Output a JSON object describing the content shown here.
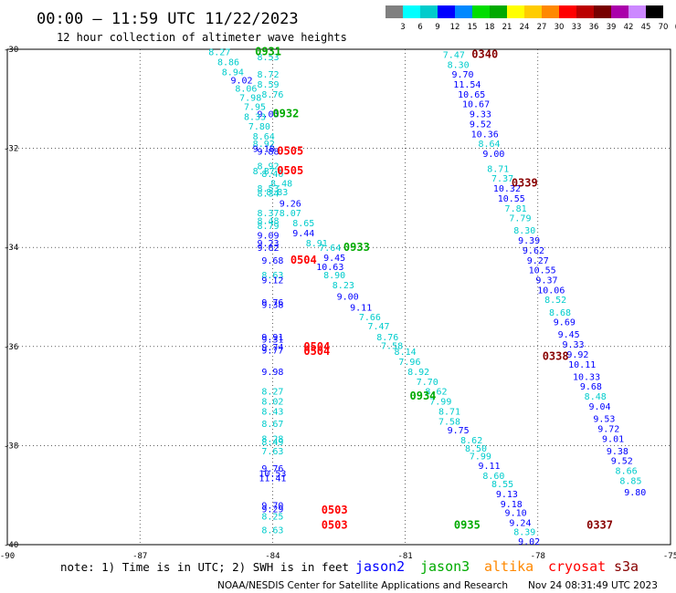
{
  "header": {
    "title": "00:00 – 11:59 UTC 11/22/2023",
    "subtitle": "12 hour collection of altimeter wave heights"
  },
  "colorbar": {
    "labels": [
      "3",
      "6",
      "9",
      "12",
      "15",
      "18",
      "21",
      "24",
      "27",
      "30",
      "33",
      "36",
      "39",
      "42",
      "45",
      "70",
      "(ft)"
    ],
    "colors": [
      "#808080",
      "#00ffff",
      "#00cccc",
      "#0000ff",
      "#0088ff",
      "#00dd00",
      "#00aa00",
      "#ffff00",
      "#ffcc00",
      "#ff8800",
      "#ff0000",
      "#bb0000",
      "#770000",
      "#aa00aa",
      "#cc88ff",
      "#000000"
    ]
  },
  "footer": {
    "note": "note: 1) Time is in UTC; 2) SWH is in feet",
    "legend": [
      {
        "name": "jason2",
        "color": "#0000ff"
      },
      {
        "name": "jason3",
        "color": "#00aa00"
      },
      {
        "name": "altika",
        "color": "#ff8800"
      },
      {
        "name": "cryosat",
        "color": "#ff0000"
      },
      {
        "name": "s3a",
        "color": "#880000"
      }
    ],
    "credit": "NOAA/NESDIS Center for Satellite Applications and Research",
    "timestamp": "Nov 24 08:31:49 UTC 2023"
  },
  "chart_data": {
    "type": "scatter",
    "title": "00:00 – 11:59 UTC 11/22/2023",
    "subtitle": "12 hour collection of altimeter wave heights",
    "xlim": [
      -90,
      -75
    ],
    "ylim": [
      -40,
      -30
    ],
    "x_ticks": [
      "-90",
      "-87",
      "-84",
      "-81",
      "-78",
      "-75"
    ],
    "y_ticks": [
      "-30",
      "-32",
      "-34",
      "-36",
      "-38",
      "-40"
    ],
    "grid": "dotted",
    "color_scale": {
      "3-9": "#00cccc",
      "9-12": "#0000ff"
    },
    "pass_labels": [
      {
        "label": "0931",
        "x": -84.1,
        "y": -30.05,
        "color": "#00aa00"
      },
      {
        "label": "0932",
        "x": -83.7,
        "y": -31.3,
        "color": "#00aa00"
      },
      {
        "label": "0505",
        "x": -83.6,
        "y": -32.05,
        "color": "#ff0000"
      },
      {
        "label": "0505",
        "x": -83.6,
        "y": -32.45,
        "color": "#ff0000"
      },
      {
        "label": "0933",
        "x": -82.1,
        "y": -34.0,
        "color": "#00aa00"
      },
      {
        "label": "0504",
        "x": -83.3,
        "y": -34.25,
        "color": "#ff0000"
      },
      {
        "label": "0504",
        "x": -83.0,
        "y": -36.0,
        "color": "#ff0000"
      },
      {
        "label": "0504",
        "x": -83.0,
        "y": -36.1,
        "color": "#ff0000"
      },
      {
        "label": "0934",
        "x": -80.6,
        "y": -37.0,
        "color": "#00aa00"
      },
      {
        "label": "0503",
        "x": -82.6,
        "y": -39.3,
        "color": "#ff0000"
      },
      {
        "label": "0503",
        "x": -82.6,
        "y": -39.6,
        "color": "#ff0000"
      },
      {
        "label": "0935",
        "x": -79.6,
        "y": -39.6,
        "color": "#00aa00"
      },
      {
        "label": "0340",
        "x": -79.2,
        "y": -30.1,
        "color": "#880000"
      },
      {
        "label": "0339",
        "x": -78.3,
        "y": -32.7,
        "color": "#880000"
      },
      {
        "label": "0338",
        "x": -77.6,
        "y": -36.2,
        "color": "#880000"
      },
      {
        "label": "0337",
        "x": -76.6,
        "y": -39.6,
        "color": "#880000"
      }
    ],
    "points": [
      {
        "x": -85.2,
        "y": -30.05,
        "v": "8.27"
      },
      {
        "x": -84.1,
        "y": -30.15,
        "v": "8.53"
      },
      {
        "x": -85.0,
        "y": -30.25,
        "v": "8.86"
      },
      {
        "x": -84.9,
        "y": -30.45,
        "v": "8.94"
      },
      {
        "x": -84.1,
        "y": -30.5,
        "v": "8.72"
      },
      {
        "x": -84.7,
        "y": -30.62,
        "v": "9.02"
      },
      {
        "x": -84.1,
        "y": -30.7,
        "v": "8.59"
      },
      {
        "x": -84.6,
        "y": -30.78,
        "v": "8.06"
      },
      {
        "x": -84.0,
        "y": -30.9,
        "v": "8.76"
      },
      {
        "x": -84.5,
        "y": -30.97,
        "v": "7.98"
      },
      {
        "x": -84.4,
        "y": -31.15,
        "v": "7.95"
      },
      {
        "x": -84.1,
        "y": -31.3,
        "v": "9.03"
      },
      {
        "x": -84.4,
        "y": -31.35,
        "v": "8.33"
      },
      {
        "x": -84.3,
        "y": -31.55,
        "v": "7.80"
      },
      {
        "x": -84.2,
        "y": -31.75,
        "v": "8.64"
      },
      {
        "x": -84.2,
        "y": -31.9,
        "v": "8.92"
      },
      {
        "x": -84.2,
        "y": -32.0,
        "v": "9.18"
      },
      {
        "x": -84.1,
        "y": -32.05,
        "v": "9.88"
      },
      {
        "x": -84.1,
        "y": -32.35,
        "v": "8.92"
      },
      {
        "x": -84.2,
        "y": -32.45,
        "v": "8.87"
      },
      {
        "x": -84.0,
        "y": -32.5,
        "v": "8.40"
      },
      {
        "x": -83.8,
        "y": -32.7,
        "v": "8.48"
      },
      {
        "x": -84.1,
        "y": -32.8,
        "v": "8.53"
      },
      {
        "x": -83.9,
        "y": -32.87,
        "v": "8.83"
      },
      {
        "x": -84.1,
        "y": -32.9,
        "v": "8.34"
      },
      {
        "x": -83.6,
        "y": -33.1,
        "v": "9.26"
      },
      {
        "x": -84.1,
        "y": -33.3,
        "v": "8.37"
      },
      {
        "x": -83.6,
        "y": -33.3,
        "v": "8.07"
      },
      {
        "x": -84.1,
        "y": -33.45,
        "v": "8.48"
      },
      {
        "x": -83.3,
        "y": -33.5,
        "v": "8.65"
      },
      {
        "x": -84.1,
        "y": -33.55,
        "v": "8.79"
      },
      {
        "x": -84.1,
        "y": -33.75,
        "v": "9.09"
      },
      {
        "x": -83.3,
        "y": -33.7,
        "v": "9.44"
      },
      {
        "x": -84.1,
        "y": -33.9,
        "v": "9.23"
      },
      {
        "x": -83.0,
        "y": -33.9,
        "v": "8.91"
      },
      {
        "x": -84.1,
        "y": -34.0,
        "v": "9.62"
      },
      {
        "x": -82.7,
        "y": -34.0,
        "v": "7.64"
      },
      {
        "x": -82.6,
        "y": -34.2,
        "v": "9.45"
      },
      {
        "x": -84.0,
        "y": -34.25,
        "v": "9.68"
      },
      {
        "x": -82.7,
        "y": -34.38,
        "v": "10.63"
      },
      {
        "x": -84.0,
        "y": -34.55,
        "v": "8.63"
      },
      {
        "x": -84.0,
        "y": -34.65,
        "v": "9.12"
      },
      {
        "x": -82.6,
        "y": -34.55,
        "v": "8.90"
      },
      {
        "x": -82.4,
        "y": -34.75,
        "v": "8.23"
      },
      {
        "x": -82.3,
        "y": -34.98,
        "v": "9.00"
      },
      {
        "x": -84.0,
        "y": -35.1,
        "v": "9.76"
      },
      {
        "x": -84.0,
        "y": -35.15,
        "v": "9.38"
      },
      {
        "x": -82.0,
        "y": -35.2,
        "v": "9.11"
      },
      {
        "x": -81.8,
        "y": -35.4,
        "v": "7.66"
      },
      {
        "x": -81.6,
        "y": -35.58,
        "v": "7.47"
      },
      {
        "x": -81.4,
        "y": -35.8,
        "v": "8.76"
      },
      {
        "x": -84.0,
        "y": -35.8,
        "v": "9.91"
      },
      {
        "x": -84.0,
        "y": -35.85,
        "v": "9.31"
      },
      {
        "x": -81.3,
        "y": -35.98,
        "v": "7.58"
      },
      {
        "x": -84.0,
        "y": -36.0,
        "v": "9.74"
      },
      {
        "x": -84.0,
        "y": -36.07,
        "v": "9.77"
      },
      {
        "x": -81.0,
        "y": -36.1,
        "v": "8.14"
      },
      {
        "x": -80.9,
        "y": -36.3,
        "v": "7.96"
      },
      {
        "x": -80.7,
        "y": -36.5,
        "v": "8.92"
      },
      {
        "x": -84.0,
        "y": -36.5,
        "v": "9.98"
      },
      {
        "x": -80.5,
        "y": -36.7,
        "v": "7.70"
      },
      {
        "x": -84.0,
        "y": -36.9,
        "v": "8.27"
      },
      {
        "x": -80.3,
        "y": -36.9,
        "v": "8.62"
      },
      {
        "x": -84.0,
        "y": -37.1,
        "v": "8.02"
      },
      {
        "x": -80.2,
        "y": -37.1,
        "v": "7.99"
      },
      {
        "x": -84.0,
        "y": -37.3,
        "v": "8.43"
      },
      {
        "x": -80.0,
        "y": -37.3,
        "v": "8.71"
      },
      {
        "x": -80.0,
        "y": -37.5,
        "v": "7.58"
      },
      {
        "x": -84.0,
        "y": -37.55,
        "v": "8.67"
      },
      {
        "x": -79.8,
        "y": -37.68,
        "v": "9.75"
      },
      {
        "x": -84.0,
        "y": -37.85,
        "v": "8.28"
      },
      {
        "x": -84.0,
        "y": -37.92,
        "v": "8.49"
      },
      {
        "x": -79.5,
        "y": -37.88,
        "v": "8.62"
      },
      {
        "x": -79.4,
        "y": -38.05,
        "v": "8.50"
      },
      {
        "x": -84.0,
        "y": -38.1,
        "v": "7.63"
      },
      {
        "x": -79.3,
        "y": -38.2,
        "v": "7.99"
      },
      {
        "x": -79.1,
        "y": -38.4,
        "v": "9.11"
      },
      {
        "x": -84.0,
        "y": -38.45,
        "v": "9.76"
      },
      {
        "x": -84.0,
        "y": -38.55,
        "v": "10.53"
      },
      {
        "x": -84.0,
        "y": -38.65,
        "v": "11.41"
      },
      {
        "x": -79.0,
        "y": -38.6,
        "v": "8.60"
      },
      {
        "x": -78.8,
        "y": -38.77,
        "v": "8.55"
      },
      {
        "x": -78.7,
        "y": -38.97,
        "v": "9.13"
      },
      {
        "x": -78.6,
        "y": -39.17,
        "v": "9.18"
      },
      {
        "x": -84.0,
        "y": -39.2,
        "v": "9.70"
      },
      {
        "x": -84.0,
        "y": -39.27,
        "v": "9.29"
      },
      {
        "x": -78.5,
        "y": -39.35,
        "v": "9.10"
      },
      {
        "x": -84.0,
        "y": -39.42,
        "v": "8.25"
      },
      {
        "x": -78.4,
        "y": -39.55,
        "v": "9.24"
      },
      {
        "x": -84.0,
        "y": -39.7,
        "v": "8.63"
      },
      {
        "x": -78.3,
        "y": -39.73,
        "v": "8.39"
      },
      {
        "x": -78.2,
        "y": -39.93,
        "v": "9.02"
      },
      {
        "x": -79.9,
        "y": -30.1,
        "v": "7.47"
      },
      {
        "x": -79.8,
        "y": -30.3,
        "v": "8.30"
      },
      {
        "x": -79.7,
        "y": -30.5,
        "v": "9.70"
      },
      {
        "x": -79.6,
        "y": -30.7,
        "v": "11.54"
      },
      {
        "x": -79.5,
        "y": -30.9,
        "v": "10.65"
      },
      {
        "x": -79.4,
        "y": -31.1,
        "v": "10.67"
      },
      {
        "x": -79.3,
        "y": -31.3,
        "v": "9.33"
      },
      {
        "x": -79.3,
        "y": -31.5,
        "v": "9.52"
      },
      {
        "x": -79.2,
        "y": -31.7,
        "v": "10.36"
      },
      {
        "x": -79.1,
        "y": -31.9,
        "v": "8.64"
      },
      {
        "x": -79.0,
        "y": -32.1,
        "v": "9.00"
      },
      {
        "x": -78.9,
        "y": -32.4,
        "v": "8.71"
      },
      {
        "x": -78.8,
        "y": -32.6,
        "v": "7.37"
      },
      {
        "x": -78.7,
        "y": -32.8,
        "v": "10.32"
      },
      {
        "x": -78.6,
        "y": -33.0,
        "v": "10.55"
      },
      {
        "x": -78.5,
        "y": -33.2,
        "v": "7.81"
      },
      {
        "x": -78.4,
        "y": -33.4,
        "v": "7.79"
      },
      {
        "x": -78.3,
        "y": -33.65,
        "v": "8.30"
      },
      {
        "x": -78.2,
        "y": -33.85,
        "v": "9.39"
      },
      {
        "x": -78.1,
        "y": -34.05,
        "v": "9.62"
      },
      {
        "x": -78.0,
        "y": -34.25,
        "v": "9.27"
      },
      {
        "x": -77.9,
        "y": -34.45,
        "v": "10.55"
      },
      {
        "x": -77.8,
        "y": -34.65,
        "v": "9.37"
      },
      {
        "x": -77.7,
        "y": -34.85,
        "v": "10.06"
      },
      {
        "x": -77.6,
        "y": -35.05,
        "v": "8.52"
      },
      {
        "x": -77.5,
        "y": -35.3,
        "v": "8.68"
      },
      {
        "x": -77.4,
        "y": -35.5,
        "v": "9.69"
      },
      {
        "x": -77.3,
        "y": -35.75,
        "v": "9.45"
      },
      {
        "x": -77.2,
        "y": -35.95,
        "v": "9.33"
      },
      {
        "x": -77.1,
        "y": -36.15,
        "v": "9.92"
      },
      {
        "x": -77.0,
        "y": -36.35,
        "v": "10.11"
      },
      {
        "x": -76.9,
        "y": -36.6,
        "v": "10.33"
      },
      {
        "x": -76.8,
        "y": -36.8,
        "v": "9.68"
      },
      {
        "x": -76.7,
        "y": -37.0,
        "v": "8.48"
      },
      {
        "x": -76.6,
        "y": -37.2,
        "v": "9.04"
      },
      {
        "x": -76.5,
        "y": -37.45,
        "v": "9.53"
      },
      {
        "x": -76.4,
        "y": -37.65,
        "v": "9.72"
      },
      {
        "x": -76.3,
        "y": -37.85,
        "v": "9.01"
      },
      {
        "x": -76.2,
        "y": -38.1,
        "v": "9.38"
      },
      {
        "x": -76.1,
        "y": -38.3,
        "v": "9.52"
      },
      {
        "x": -76.0,
        "y": -38.5,
        "v": "8.66"
      },
      {
        "x": -75.9,
        "y": -38.7,
        "v": "8.85"
      },
      {
        "x": -75.8,
        "y": -38.93,
        "v": "9.80"
      }
    ]
  }
}
